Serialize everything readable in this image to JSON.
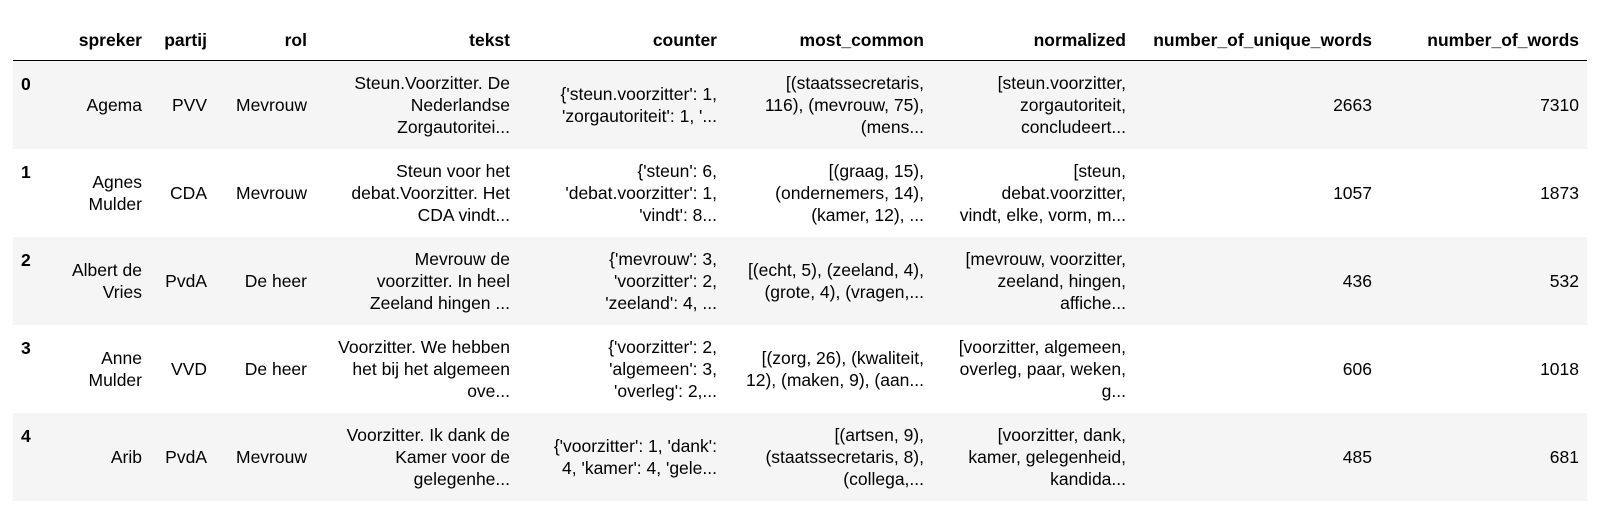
{
  "columns": [
    "",
    "spreker",
    "partij",
    "rol",
    "tekst",
    "counter",
    "most_common",
    "normalized",
    "number_of_unique_words",
    "number_of_words"
  ],
  "rows": [
    {
      "index": "0",
      "spreker": [
        "Agema"
      ],
      "partij": "PVV",
      "rol": "Mevrouw",
      "tekst": [
        "Steun.Voorzitter. De",
        "Nederlandse",
        "Zorgautoritei..."
      ],
      "counter": [
        "{'steun.voorzitter': 1,",
        "'zorgautoriteit': 1, '..."
      ],
      "most_common": [
        "[(staatssecretaris,",
        "116), (mevrouw, 75),",
        "(mens..."
      ],
      "normalized": [
        "[steun.voorzitter,",
        "zorgautoriteit,",
        "concludeert..."
      ],
      "number_of_unique_words": "2663",
      "number_of_words": "7310"
    },
    {
      "index": "1",
      "spreker": [
        "Agnes",
        "Mulder"
      ],
      "partij": "CDA",
      "rol": "Mevrouw",
      "tekst": [
        "Steun voor het",
        "debat.Voorzitter. Het",
        "CDA vindt..."
      ],
      "counter": [
        "{'steun': 6,",
        "'debat.voorzitter': 1,",
        "'vindt': 8..."
      ],
      "most_common": [
        "[(graag, 15),",
        "(ondernemers, 14),",
        "(kamer, 12), ..."
      ],
      "normalized": [
        "[steun,",
        "debat.voorzitter,",
        "vindt, elke, vorm, m..."
      ],
      "number_of_unique_words": "1057",
      "number_of_words": "1873"
    },
    {
      "index": "2",
      "spreker": [
        "Albert de",
        "Vries"
      ],
      "partij": "PvdA",
      "rol": "De heer",
      "tekst": [
        "Mevrouw de",
        "voorzitter. In heel",
        "Zeeland hingen ..."
      ],
      "counter": [
        "{'mevrouw': 3,",
        "'voorzitter': 2,",
        "'zeeland': 4, ..."
      ],
      "most_common": [
        "[(echt, 5), (zeeland, 4),",
        "(grote, 4), (vragen,..."
      ],
      "normalized": [
        "[mevrouw, voorzitter,",
        "zeeland, hingen,",
        "affiche..."
      ],
      "number_of_unique_words": "436",
      "number_of_words": "532"
    },
    {
      "index": "3",
      "spreker": [
        "Anne",
        "Mulder"
      ],
      "partij": "VVD",
      "rol": "De heer",
      "tekst": [
        "Voorzitter. We hebben",
        "het bij het algemeen",
        "ove..."
      ],
      "counter": [
        "{'voorzitter': 2,",
        "'algemeen': 3,",
        "'overleg': 2,..."
      ],
      "most_common": [
        "[(zorg, 26), (kwaliteit,",
        "12), (maken, 9), (aan..."
      ],
      "normalized": [
        "[voorzitter, algemeen,",
        "overleg, paar, weken,",
        "g..."
      ],
      "number_of_unique_words": "606",
      "number_of_words": "1018"
    },
    {
      "index": "4",
      "spreker": [
        "Arib"
      ],
      "partij": "PvdA",
      "rol": "Mevrouw",
      "tekst": [
        "Voorzitter. Ik dank de",
        "Kamer voor de",
        "gelegenhe..."
      ],
      "counter": [
        "{'voorzitter': 1, 'dank':",
        "4, 'kamer': 4, 'gele..."
      ],
      "most_common": [
        "[(artsen, 9),",
        "(staatssecretaris, 8),",
        "(collega,..."
      ],
      "normalized": [
        "[voorzitter, dank,",
        "kamer, gelegenheid,",
        "kandida..."
      ],
      "number_of_unique_words": "485",
      "number_of_words": "681"
    }
  ]
}
